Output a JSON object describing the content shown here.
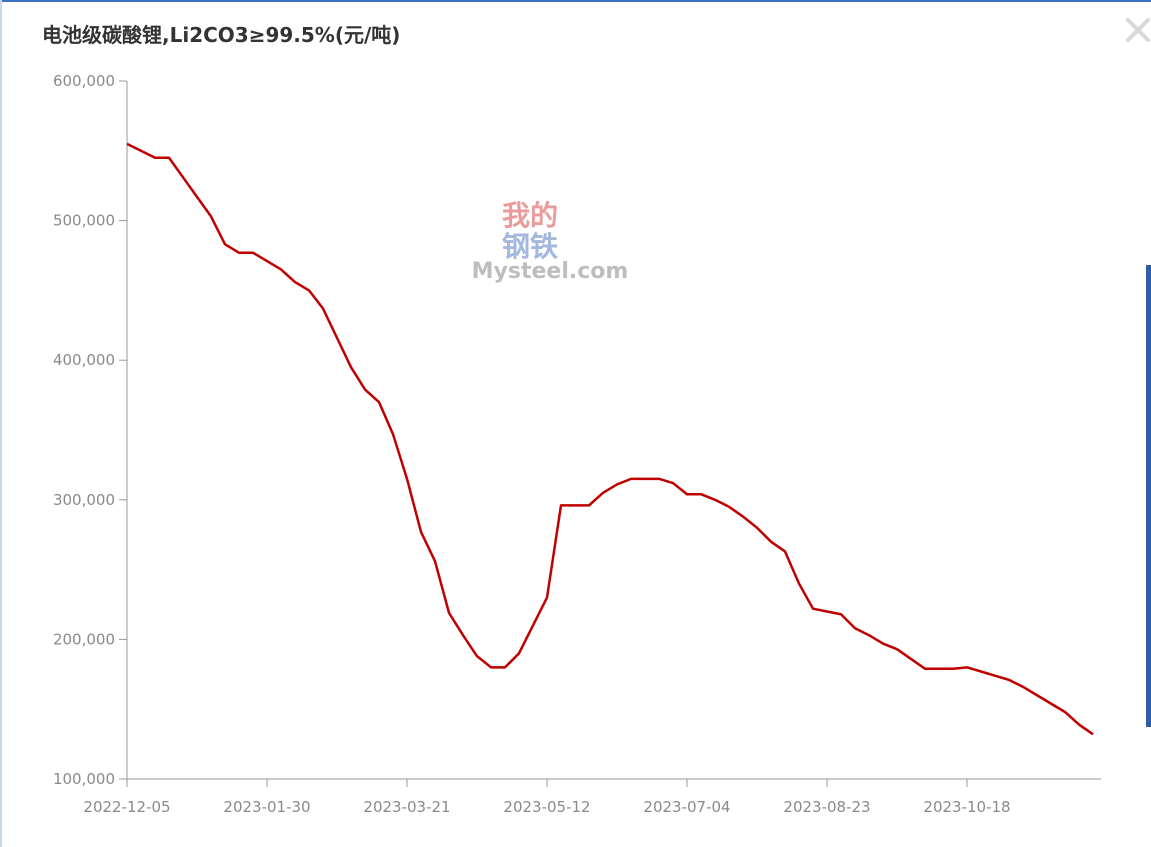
{
  "chart_data": {
    "type": "line",
    "title": "电池级碳酸锂,Li2CO3≥99.5%(元/吨)",
    "watermark": [
      "我的",
      "钢铁",
      "Mysteel.com"
    ],
    "categories": [
      "2022-12-05",
      null,
      null,
      null,
      null,
      null,
      null,
      null,
      null,
      null,
      "2023-01-30",
      null,
      null,
      null,
      null,
      null,
      null,
      null,
      null,
      null,
      "2023-03-21",
      null,
      null,
      null,
      null,
      null,
      null,
      null,
      null,
      null,
      "2023-05-12",
      null,
      null,
      null,
      null,
      null,
      null,
      null,
      null,
      null,
      "2023-07-04",
      null,
      null,
      null,
      null,
      null,
      null,
      null,
      null,
      null,
      "2023-08-23",
      null,
      null,
      null,
      null,
      null,
      null,
      null,
      null,
      null,
      "2023-10-18",
      null,
      null,
      null,
      null,
      null,
      null,
      null,
      null,
      null
    ],
    "series": [
      {
        "color": "#c00000",
        "values": [
          555000,
          550000,
          545000,
          545000,
          531000,
          517000,
          503000,
          483000,
          477000,
          477000,
          471000,
          465000,
          456000,
          450000,
          437000,
          416000,
          395000,
          379000,
          370000,
          347000,
          315000,
          277000,
          256000,
          219000,
          203000,
          188000,
          180000,
          180000,
          190000,
          210000,
          230000,
          296000,
          296000,
          296000,
          305000,
          311000,
          315000,
          315000,
          315000,
          312000,
          304000,
          304000,
          300000,
          295000,
          288000,
          280000,
          270000,
          263000,
          240000,
          222000,
          220000,
          218000,
          208000,
          203000,
          197000,
          193000,
          186000,
          179000,
          179000,
          179000,
          180000,
          177000,
          174000,
          171000,
          166000,
          160000,
          154000,
          148000,
          139000,
          132000
        ]
      }
    ],
    "ylim": [
      100000,
      600000
    ],
    "yticks": [
      {
        "value": 100000,
        "label": "100,000"
      },
      {
        "value": 200000,
        "label": "200,000"
      },
      {
        "value": 300000,
        "label": "300,000"
      },
      {
        "value": 400000,
        "label": "400,000"
      },
      {
        "value": 500000,
        "label": "500,000"
      },
      {
        "value": 600000,
        "label": "600,000"
      }
    ],
    "grid": false
  }
}
